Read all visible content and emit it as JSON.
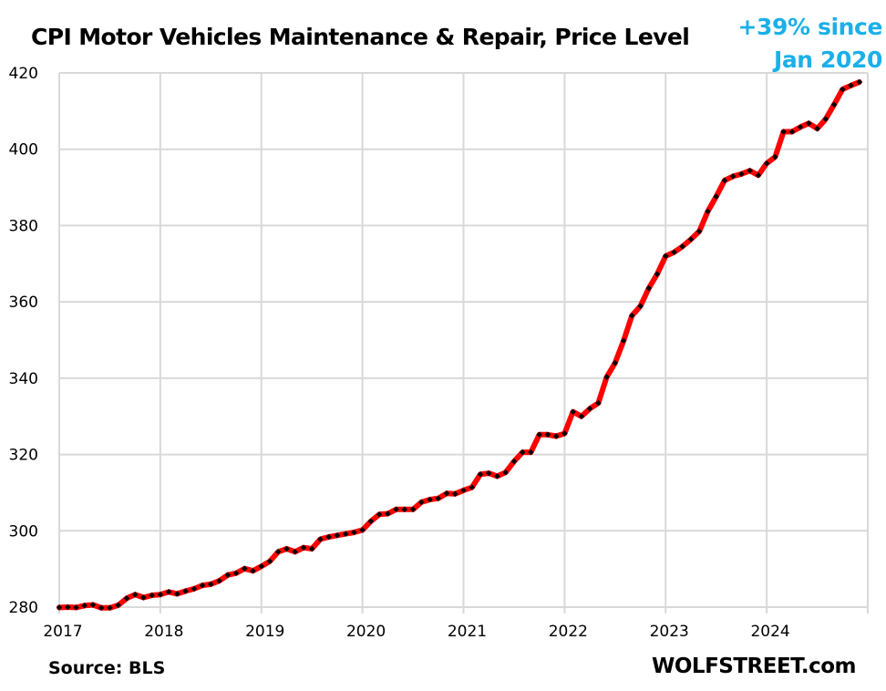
{
  "chart_data": {
    "type": "line",
    "title": "CPI Motor Vehicles Maintenance & Repair, Price Level",
    "annotation": [
      "+39% since",
      "Jan 2020"
    ],
    "xlabel": "",
    "ylabel": "",
    "ylim": [
      280,
      420
    ],
    "yticks": [
      "280",
      "300",
      "320",
      "340",
      "360",
      "380",
      "400",
      "420"
    ],
    "yticks_values": [
      280,
      300,
      320,
      340,
      360,
      380,
      400,
      420
    ],
    "xticks": [
      "2017",
      "2018",
      "2019",
      "2020",
      "2021",
      "2022",
      "2023",
      "2024"
    ],
    "xlim_years": [
      2017,
      2025
    ],
    "grid": true,
    "legend": "none",
    "series": [
      {
        "name": "CPI Motor Vehicles Maintenance & Repair",
        "start": "2017-01",
        "frequency": "monthly",
        "line_color": "#ff0000",
        "marker_color": "#000000",
        "values": [
          279.9,
          280.0,
          279.9,
          280.4,
          280.6,
          279.8,
          279.8,
          280.5,
          282.3,
          283.3,
          282.5,
          283.1,
          283.3,
          284.0,
          283.5,
          284.2,
          284.8,
          285.7,
          286.0,
          286.9,
          288.4,
          288.9,
          290.1,
          289.5,
          290.7,
          292.0,
          294.5,
          295.3,
          294.5,
          295.6,
          295.3,
          297.8,
          298.4,
          298.8,
          299.2,
          299.6,
          300.2,
          302.5,
          304.3,
          304.5,
          305.6,
          305.6,
          305.6,
          307.5,
          308.2,
          308.5,
          309.8,
          309.7,
          310.6,
          311.4,
          314.8,
          315.1,
          314.3,
          315.3,
          318.2,
          320.6,
          320.6,
          325.2,
          325.2,
          324.8,
          325.5,
          331.2,
          330.0,
          332.0,
          333.5,
          340.3,
          344.0,
          349.8,
          356.4,
          358.9,
          363.6,
          367.3,
          372.0,
          373.0,
          374.5,
          376.4,
          378.5,
          383.7,
          387.6,
          391.8,
          392.9,
          393.5,
          394.4,
          393.2,
          396.3,
          398.0,
          404.6,
          404.6,
          405.8,
          406.8,
          405.4,
          407.9,
          411.7,
          415.7,
          416.7,
          417.6
        ]
      }
    ]
  },
  "footer": {
    "source": "Source: BLS",
    "brand": "WOLFSTREET.com"
  }
}
